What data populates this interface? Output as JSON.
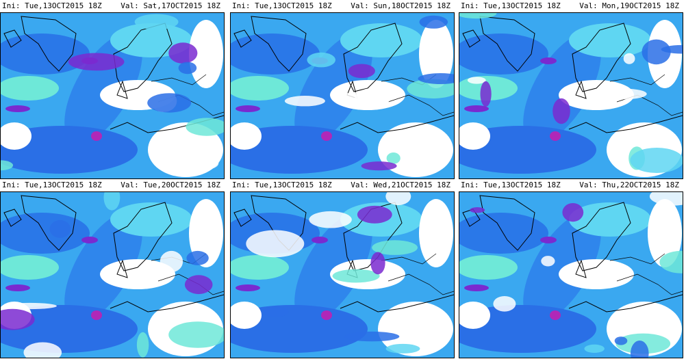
{
  "panels": [
    {
      "init": "Ini: Tue,13OCT2015 18Z",
      "valid": "Val: Sat,17OCT2015 18Z"
    },
    {
      "init": "Ini: Tue,13OCT2015 18Z",
      "valid": "Val: Sun,18OCT2015 18Z"
    },
    {
      "init": "Ini: Tue,13OCT2015 18Z",
      "valid": "Val: Mon,19OCT2015 18Z"
    },
    {
      "init": "Ini: Tue,13OCT2015 18Z",
      "valid": "Val: Tue,20OCT2015 18Z"
    },
    {
      "init": "Ini: Tue,13OCT2015 18Z",
      "valid": "Val: Wed,21OCT2015 18Z"
    },
    {
      "init": "Ini: Tue,13OCT2015 18Z",
      "valid": "Val: Thu,22OCT2015 18Z"
    }
  ]
}
